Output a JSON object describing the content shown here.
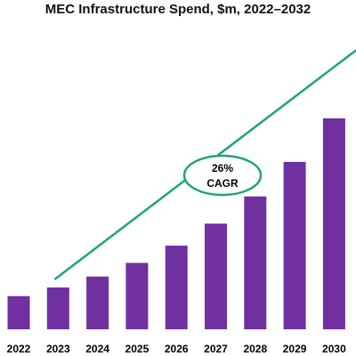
{
  "chart_data": {
    "type": "bar",
    "title": "MEC Infrastructure Spend, $m, 2022–2032",
    "xlabel": "",
    "ylabel": "",
    "categories": [
      "2022",
      "2023",
      "2024",
      "2025",
      "2026",
      "2027",
      "2028",
      "2029",
      "2030"
    ],
    "values": [
      1.0,
      1.26,
      1.59,
      2.0,
      2.52,
      3.18,
      4.0,
      5.04,
      6.35
    ],
    "ylim": [
      0,
      8.2
    ],
    "grid": false,
    "legend": "none",
    "bar_color": "#7030a0",
    "trend": {
      "color": "#1fa37a",
      "start_category": "2023",
      "start_value": 1.5,
      "end_value": 8.4
    },
    "annotation": {
      "line1": "26%",
      "line2": "CAGR",
      "border_color": "#1fa37a"
    }
  }
}
